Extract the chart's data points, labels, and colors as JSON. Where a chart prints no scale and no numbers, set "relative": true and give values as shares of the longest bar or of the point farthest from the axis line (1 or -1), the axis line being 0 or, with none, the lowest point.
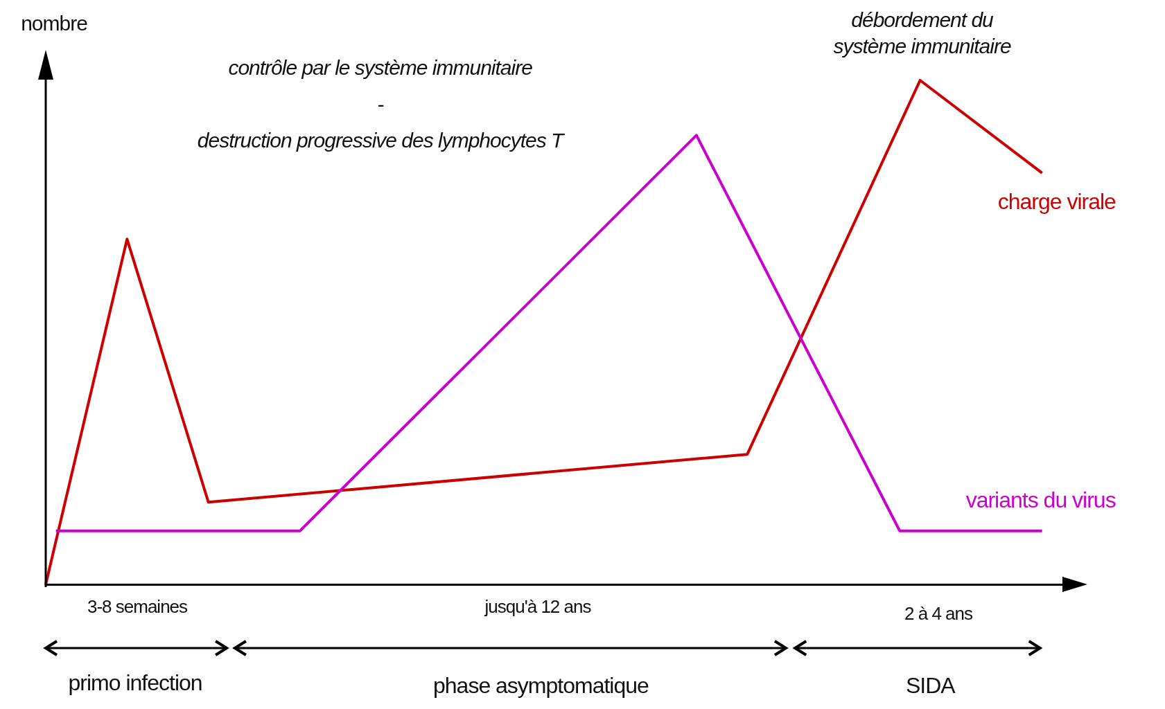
{
  "chart_data": {
    "type": "line",
    "relative": true,
    "ylabel": "nombre",
    "grid": false,
    "legend": false,
    "marker": "none",
    "line_style": "solid",
    "categories": [
      null,
      null,
      null,
      null,
      null,
      null,
      null,
      null,
      null,
      null,
      null,
      null,
      null,
      null,
      null,
      null,
      null,
      null,
      null,
      null,
      null,
      null,
      null,
      null,
      null,
      null,
      null,
      null,
      null,
      null,
      null,
      null,
      null,
      null,
      null,
      null,
      null,
      null,
      null,
      null,
      null,
      null,
      null,
      null,
      null,
      null,
      null,
      null,
      null,
      null,
      null,
      null,
      null,
      null,
      null,
      null,
      null,
      null,
      null,
      null,
      null,
      null,
      null,
      null,
      null,
      null,
      null,
      null,
      null,
      null,
      null,
      null,
      null,
      null,
      null,
      null,
      null,
      null,
      null,
      null,
      null,
      null,
      null,
      null,
      null,
      null,
      null,
      null,
      null,
      null,
      null,
      null,
      null,
      null,
      null,
      null,
      null,
      null,
      null,
      null,
      null
    ],
    "series": [
      {
        "name": "charge virale",
        "color": "#cc0000",
        "values": [
          0,
          null,
          null,
          null,
          null,
          null,
          null,
          null,
          0.685,
          null,
          null,
          null,
          null,
          null,
          null,
          null,
          0.163,
          null,
          null,
          null,
          null,
          null,
          null,
          null,
          null,
          null,
          null,
          null,
          null,
          null,
          null,
          null,
          null,
          null,
          null,
          null,
          null,
          null,
          null,
          null,
          null,
          null,
          null,
          null,
          null,
          null,
          null,
          null,
          null,
          null,
          null,
          null,
          null,
          null,
          null,
          null,
          null,
          null,
          null,
          null,
          null,
          null,
          null,
          null,
          null,
          null,
          null,
          null,
          null,
          0.258,
          null,
          null,
          null,
          null,
          null,
          null,
          null,
          null,
          null,
          null,
          null,
          null,
          null,
          null,
          null,
          null,
          1,
          null,
          null,
          null,
          null,
          null,
          null,
          null,
          null,
          null,
          null,
          null,
          0.816,
          null,
          null
        ]
      },
      {
        "name": "variants du virus",
        "color": "#cc00cc",
        "values": [
          null,
          0.106,
          null,
          null,
          null,
          null,
          null,
          null,
          null,
          null,
          null,
          null,
          null,
          null,
          null,
          null,
          null,
          null,
          null,
          null,
          null,
          null,
          null,
          null,
          null,
          0.106,
          null,
          null,
          null,
          null,
          null,
          null,
          null,
          null,
          null,
          null,
          null,
          null,
          null,
          null,
          null,
          null,
          null,
          null,
          null,
          null,
          null,
          null,
          null,
          null,
          null,
          null,
          null,
          null,
          null,
          null,
          null,
          null,
          null,
          null,
          null,
          null,
          null,
          null,
          0.891,
          null,
          null,
          null,
          null,
          null,
          null,
          null,
          null,
          null,
          null,
          null,
          null,
          null,
          null,
          null,
          null,
          null,
          null,
          null,
          0.106,
          null,
          null,
          null,
          null,
          null,
          null,
          null,
          null,
          null,
          null,
          null,
          null,
          null,
          0.106,
          null,
          null
        ]
      }
    ],
    "annotations": [
      "contrôle par le système immunitaire\n-\ndestruction progressive des lymphocytes T",
      "débordement du\nsystème immunitaire",
      "3-8 semaines",
      "primo infection",
      "jusqu'à 12 ans",
      "phase asymptomatique",
      "2 à 4 ans",
      "SIDA"
    ]
  }
}
